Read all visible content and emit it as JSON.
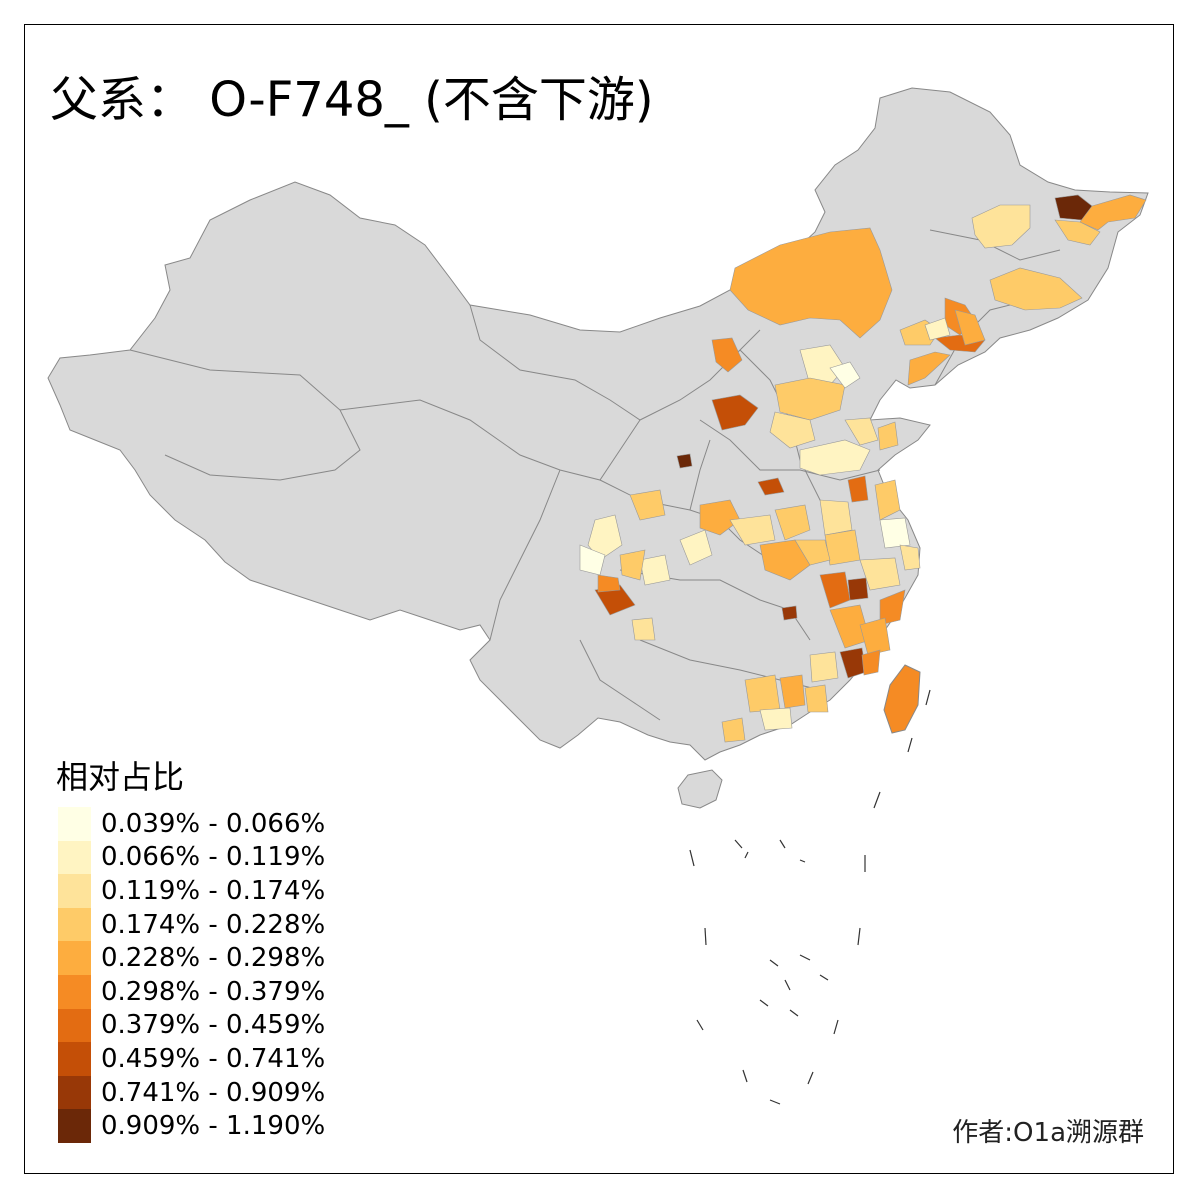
{
  "title": "父系： O-F748_ (不含下游)",
  "legend": {
    "title": "相对占比",
    "items": [
      {
        "label": "0.039% - 0.066%",
        "color": "#FFFFE5"
      },
      {
        "label": "0.066% - 0.119%",
        "color": "#FFF4C2"
      },
      {
        "label": "0.119% - 0.174%",
        "color": "#FEE39A"
      },
      {
        "label": "0.174% - 0.228%",
        "color": "#FECB68"
      },
      {
        "label": "0.228% - 0.298%",
        "color": "#FDAD3F"
      },
      {
        "label": "0.298% - 0.379%",
        "color": "#F58B24"
      },
      {
        "label": "0.379% - 0.459%",
        "color": "#E36C12"
      },
      {
        "label": "0.459% - 0.741%",
        "color": "#C44F07"
      },
      {
        "label": "0.741% - 0.909%",
        "color": "#983807"
      },
      {
        "label": "0.909% - 1.190%",
        "color": "#6B2808"
      }
    ]
  },
  "credit": "作者:O1a溯源群",
  "colors": {
    "base_land": "#D9D9D9",
    "border": "#888888"
  }
}
